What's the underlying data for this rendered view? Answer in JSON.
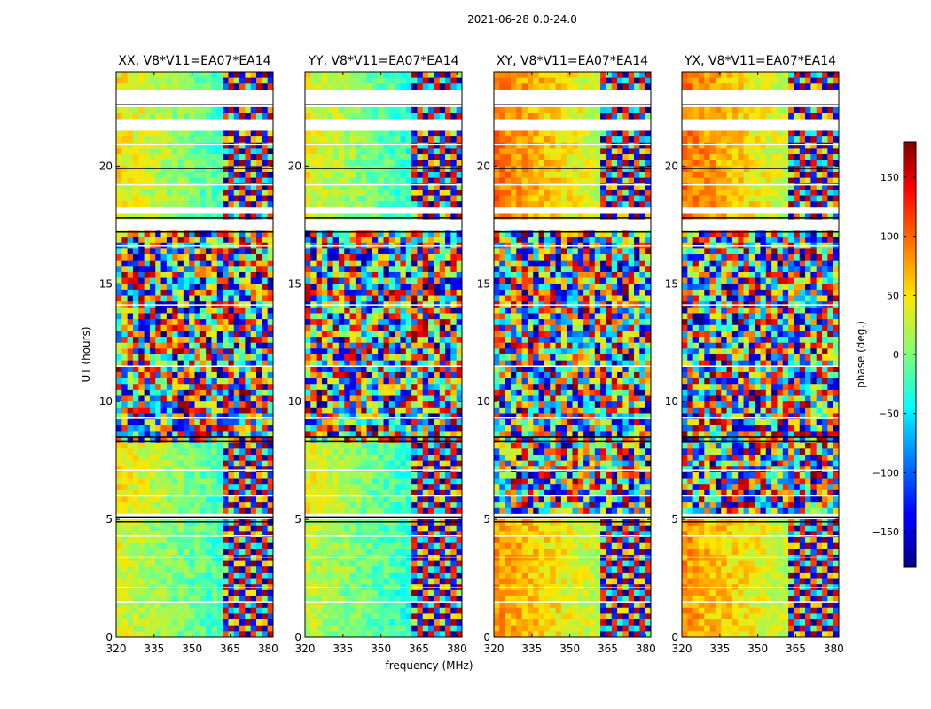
{
  "figure": {
    "suptitle": "2021-06-28 0.0-24.0"
  },
  "chart_data": {
    "type": "heatmap",
    "x_label": "frequency (MHz)",
    "y_label": "UT (hours)",
    "xlim": [
      320,
      382
    ],
    "ylim": [
      0,
      24
    ],
    "x_ticks": [
      "320",
      "335",
      "350",
      "365",
      "380"
    ],
    "x_tick_values": [
      320,
      335,
      350,
      365,
      380
    ],
    "y_ticks": [
      "0",
      "5",
      "10",
      "15",
      "20"
    ],
    "y_tick_values": [
      0,
      5,
      10,
      15,
      20
    ],
    "panels": [
      {
        "title": "XX, V8*V11=EA07*EA14"
      },
      {
        "title": "YY, V8*V11=EA07*EA14"
      },
      {
        "title": "XY, V8*V11=EA07*EA14"
      },
      {
        "title": "YX, V8*V11=EA07*EA14"
      }
    ],
    "flagged_ut_ranges": [
      [
        22.6,
        23.2
      ],
      [
        21.4,
        22.1
      ],
      [
        18.0,
        18.3
      ],
      [
        17.2,
        17.8
      ],
      [
        4.9,
        5.2
      ]
    ],
    "colorbar": {
      "label": "phase (deg.)",
      "range": [
        -180,
        180
      ],
      "ticks": [
        "150",
        "100",
        "50",
        "0",
        "−50",
        "−100",
        "−150"
      ],
      "tick_values": [
        150,
        100,
        50,
        0,
        -50,
        -100,
        -150
      ]
    }
  }
}
